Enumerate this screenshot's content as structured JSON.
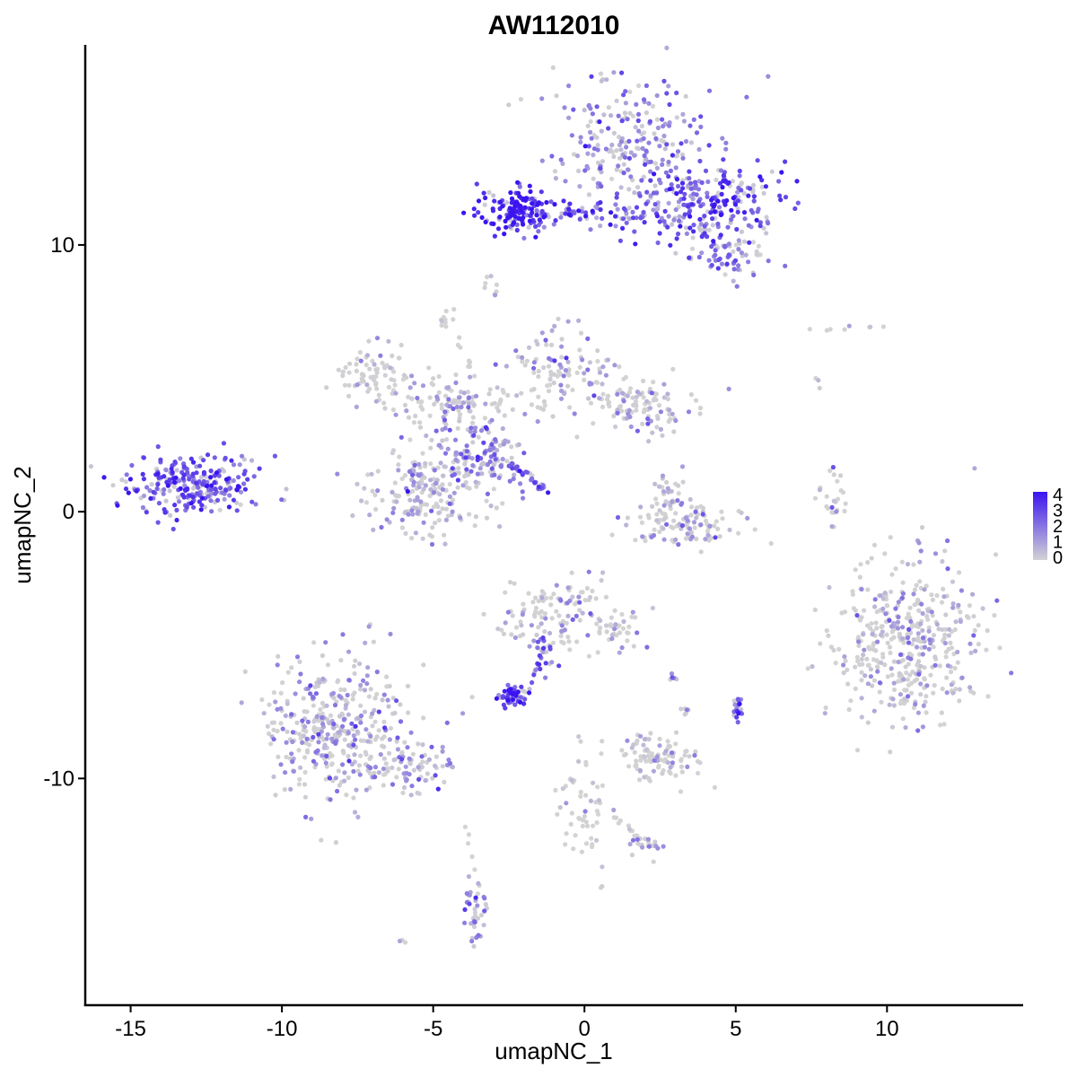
{
  "chart_data": {
    "type": "scatter",
    "title": "AW112010",
    "xlabel": "umapNC_1",
    "ylabel": "umapNC_2",
    "xlim": [
      -16.5,
      14.5
    ],
    "ylim": [
      -18.5,
      17.5
    ],
    "xticks": [
      -15,
      -10,
      -5,
      0,
      5,
      10
    ],
    "xtick_labels": [
      "-15",
      "-10",
      "-5",
      "0",
      "5",
      "10"
    ],
    "yticks": [
      -10,
      0,
      10
    ],
    "ytick_labels": [
      "-10",
      "0",
      "10"
    ],
    "grid": false,
    "legend": {
      "placement": "right",
      "type": "continuous colorbar",
      "min": 0,
      "max": 4,
      "ticks": [
        "4",
        "3",
        "2",
        "1",
        "0"
      ],
      "low_color": "#d3d3d3",
      "high_color": "#3b14f0"
    },
    "clusters": [
      {
        "cx": 1.5,
        "cy": 13.5,
        "sx": 1.2,
        "sy": 1.4,
        "n": 260,
        "expr": 1.6
      },
      {
        "cx": 4.2,
        "cy": 11.5,
        "sx": 1.2,
        "sy": 0.8,
        "n": 240,
        "expr": 2.6
      },
      {
        "cx": -2.3,
        "cy": 11.3,
        "sx": 0.6,
        "sy": 0.4,
        "n": 140,
        "expr": 3.6
      },
      {
        "cx": 0.0,
        "cy": 11.1,
        "sx": 1.2,
        "sy": 0.2,
        "n": 60,
        "expr": 2.8
      },
      {
        "cx": 5.0,
        "cy": 9.5,
        "sx": 0.6,
        "sy": 0.4,
        "n": 60,
        "expr": 1.8
      },
      {
        "cx": -3.0,
        "cy": 8.6,
        "sx": 0.2,
        "sy": 0.3,
        "n": 8,
        "expr": 0.6
      },
      {
        "cx": -13.0,
        "cy": 1.0,
        "sx": 1.1,
        "sy": 0.55,
        "n": 260,
        "expr": 2.6
      },
      {
        "cx": -7.0,
        "cy": 5.2,
        "sx": 0.6,
        "sy": 0.5,
        "n": 70,
        "expr": 0.7
      },
      {
        "cx": -4.5,
        "cy": 4.2,
        "sx": 1.2,
        "sy": 0.5,
        "n": 120,
        "expr": 0.6
      },
      {
        "cx": -5.2,
        "cy": 0.8,
        "sx": 1.0,
        "sy": 0.8,
        "n": 200,
        "expr": 0.9
      },
      {
        "cx": -3.3,
        "cy": 2.2,
        "sx": 0.7,
        "sy": 0.7,
        "n": 130,
        "expr": 1.7
      },
      {
        "cx": -0.8,
        "cy": 5.3,
        "sx": 0.9,
        "sy": 0.8,
        "n": 100,
        "expr": 0.9
      },
      {
        "cx": 1.8,
        "cy": 4.0,
        "sx": 0.9,
        "sy": 0.5,
        "n": 110,
        "expr": 0.6
      },
      {
        "cx": -4.6,
        "cy": 7.3,
        "sx": 0.15,
        "sy": 0.2,
        "n": 10,
        "expr": 0.2
      },
      {
        "cx": 3.3,
        "cy": -0.5,
        "sx": 0.9,
        "sy": 0.4,
        "n": 110,
        "expr": 0.5
      },
      {
        "cx": 2.8,
        "cy": 0.6,
        "sx": 0.3,
        "sy": 0.4,
        "n": 30,
        "expr": 0.9
      },
      {
        "cx": 8.2,
        "cy": 0.4,
        "sx": 0.2,
        "sy": 0.6,
        "n": 25,
        "expr": 0.6
      },
      {
        "cx": 10.6,
        "cy": -4.8,
        "sx": 1.2,
        "sy": 1.5,
        "n": 420,
        "expr": 0.6
      },
      {
        "cx": -1.0,
        "cy": -3.8,
        "sx": 0.8,
        "sy": 0.7,
        "n": 110,
        "expr": 0.6
      },
      {
        "cx": 1.0,
        "cy": -4.6,
        "sx": 0.5,
        "sy": 0.5,
        "n": 40,
        "expr": 0.3
      },
      {
        "cx": -8.3,
        "cy": -8.0,
        "sx": 1.2,
        "sy": 1.3,
        "n": 380,
        "expr": 1.0
      },
      {
        "cx": -5.6,
        "cy": -9.6,
        "sx": 0.9,
        "sy": 0.45,
        "n": 70,
        "expr": 1.3
      },
      {
        "cx": -2.4,
        "cy": -6.9,
        "sx": 0.25,
        "sy": 0.18,
        "n": 55,
        "expr": 3.6
      },
      {
        "cx": -1.4,
        "cy": -5.5,
        "sx": 0.3,
        "sy": 0.6,
        "n": 20,
        "expr": 2.0
      },
      {
        "cx": 2.4,
        "cy": -9.2,
        "sx": 0.6,
        "sy": 0.5,
        "n": 100,
        "expr": 0.5
      },
      {
        "cx": 5.1,
        "cy": -7.3,
        "sx": 0.08,
        "sy": 0.2,
        "n": 20,
        "expr": 2.6
      },
      {
        "cx": 0.0,
        "cy": -11.0,
        "sx": 0.4,
        "sy": 1.0,
        "n": 45,
        "expr": 0.2
      },
      {
        "cx": 2.1,
        "cy": -12.5,
        "sx": 0.3,
        "sy": 0.2,
        "n": 20,
        "expr": 1.0
      },
      {
        "cx": -3.6,
        "cy": -15.0,
        "sx": 0.2,
        "sy": 0.6,
        "n": 40,
        "expr": 1.6
      },
      {
        "cx": 3.0,
        "cy": -6.2,
        "sx": 0.1,
        "sy": 0.1,
        "n": 6,
        "expr": 2.0
      },
      {
        "cx": 3.3,
        "cy": -7.5,
        "sx": 0.1,
        "sy": 0.1,
        "n": 6,
        "expr": 1.0
      }
    ],
    "streaks": [
      {
        "x0": -2.4,
        "y0": 1.8,
        "x1": -1.2,
        "y1": 0.7,
        "n": 30,
        "expr": 2.8
      },
      {
        "x0": -4.3,
        "y0": 7.3,
        "x1": -3.7,
        "y1": 5.0,
        "n": 10,
        "expr": 0.2
      },
      {
        "x0": -1.3,
        "y0": -5.0,
        "x1": -1.7,
        "y1": -6.3,
        "n": 12,
        "expr": 2.2
      },
      {
        "x0": -0.5,
        "y0": -10.0,
        "x1": 2.1,
        "y1": -12.5,
        "n": 20,
        "expr": 0.2
      },
      {
        "x0": 7.1,
        "y0": 6.9,
        "x1": 10.0,
        "y1": 6.9,
        "n": 8,
        "expr": 0.1
      },
      {
        "x0": -3.9,
        "y0": -11.5,
        "x1": -3.6,
        "y1": -13.5,
        "n": 5,
        "expr": 0.2
      },
      {
        "x0": -6.1,
        "y0": -16.0,
        "x1": -6.0,
        "y1": -16.1,
        "n": 3,
        "expr": 0.1
      },
      {
        "x0": 0.6,
        "y0": -14.0,
        "x1": 0.6,
        "y1": -14.1,
        "n": 2,
        "expr": 0.1
      },
      {
        "x0": 7.7,
        "y0": 4.9,
        "x1": 7.8,
        "y1": 4.6,
        "n": 3,
        "expr": 0.6
      }
    ]
  }
}
